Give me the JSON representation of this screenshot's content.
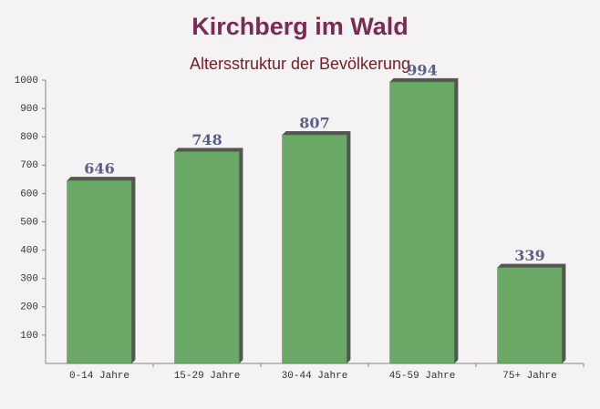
{
  "chart_data": {
    "type": "bar",
    "title": "Kirchberg im Wald",
    "subtitle": "Altersstruktur der Bevölkerung",
    "categories": [
      "0-14 Jahre",
      "15-29 Jahre",
      "30-44 Jahre",
      "45-59 Jahre",
      "75+ Jahre"
    ],
    "values": [
      646,
      748,
      807,
      994,
      339
    ],
    "color": "#6aa865",
    "ylim": [
      0,
      1000
    ],
    "yticks": [
      100,
      200,
      300,
      400,
      500,
      600,
      700,
      800,
      900,
      1000
    ],
    "grid": false
  }
}
